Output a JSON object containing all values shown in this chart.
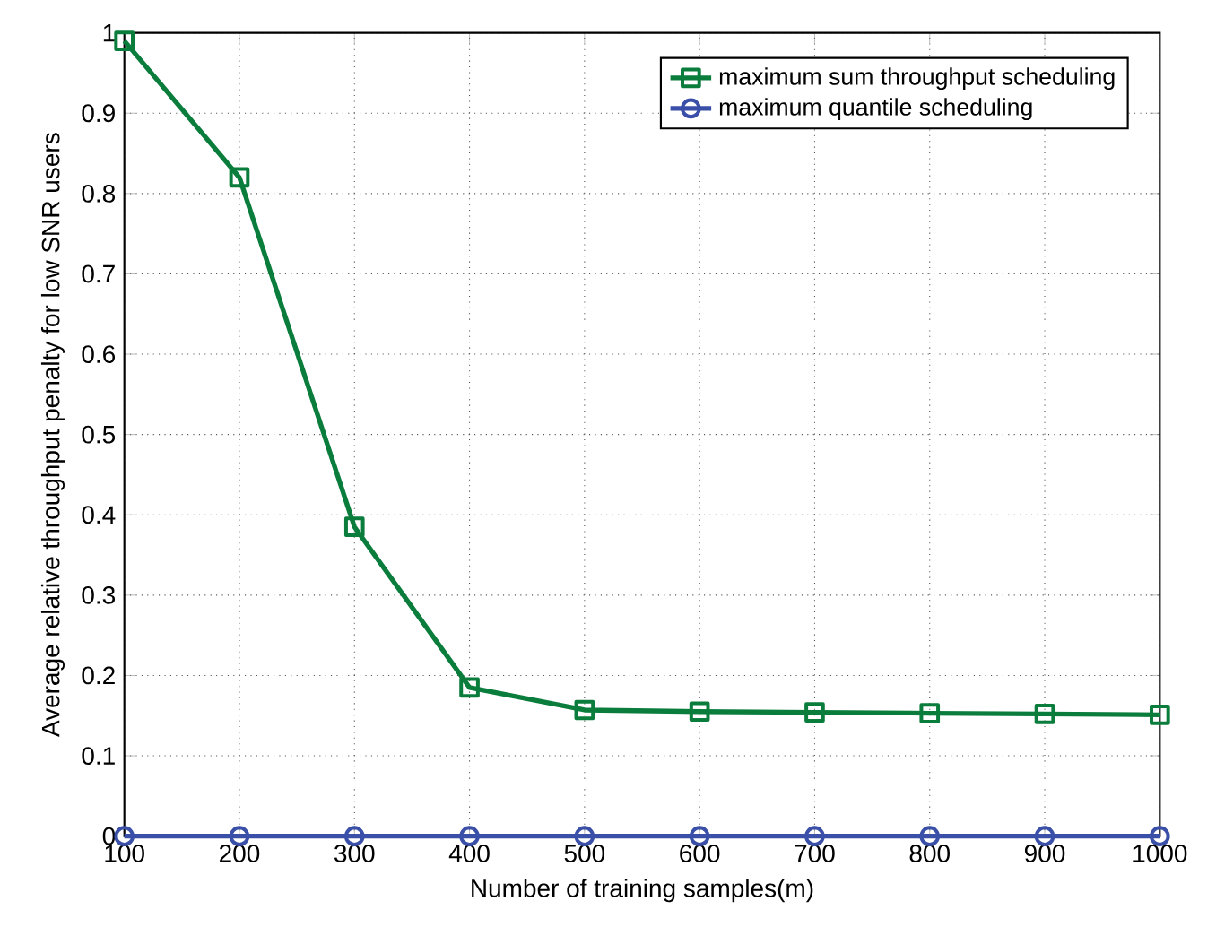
{
  "chart_data": {
    "type": "line",
    "xlabel": "Number of training samples(m)",
    "ylabel": "Average relative throughput penalty for low SNR users",
    "x": [
      100,
      200,
      300,
      400,
      500,
      600,
      700,
      800,
      900,
      1000
    ],
    "series": [
      {
        "name": "maximum sum throughput scheduling",
        "color": "#0a7d3c",
        "marker": "square",
        "values": [
          0.99,
          0.82,
          0.385,
          0.185,
          0.157,
          0.155,
          0.154,
          0.153,
          0.152,
          0.151
        ]
      },
      {
        "name": "maximum quantile scheduling",
        "color": "#3a4fa8",
        "marker": "circle",
        "values": [
          0,
          0,
          0,
          0,
          0,
          0,
          0,
          0,
          0,
          0
        ]
      }
    ],
    "xlim": [
      100,
      1000
    ],
    "ylim": [
      0,
      1
    ],
    "xticks": [
      100,
      200,
      300,
      400,
      500,
      600,
      700,
      800,
      900,
      1000
    ],
    "yticks": [
      0,
      0.1,
      0.2,
      0.3,
      0.4,
      0.5,
      0.6,
      0.7,
      0.8,
      0.9,
      1
    ],
    "grid": true,
    "legend": "top right",
    "line_style": "solid"
  }
}
